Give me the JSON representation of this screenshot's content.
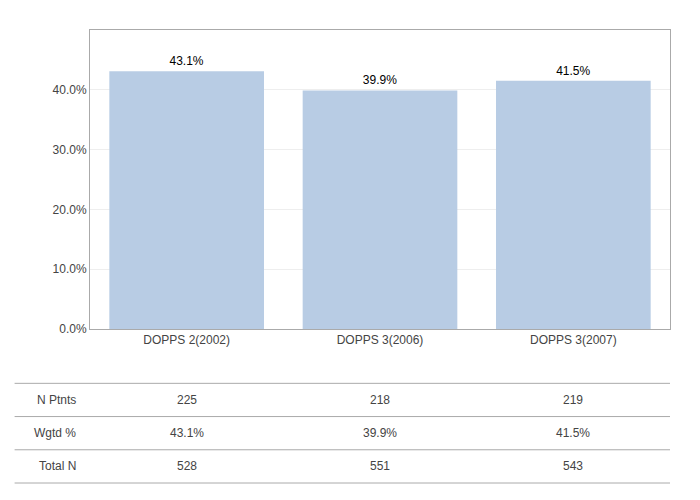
{
  "chart_data": {
    "type": "bar",
    "categories": [
      "DOPPS 2(2002)",
      "DOPPS 3(2006)",
      "DOPPS 3(2007)"
    ],
    "values": [
      43.1,
      39.9,
      41.5
    ],
    "value_labels": [
      "43.1%",
      "39.9%",
      "41.5%"
    ],
    "data_labels": true,
    "color": "#b8cce4",
    "ylim": [
      0,
      50
    ],
    "yticks": [
      {
        "value": 0,
        "label": "0.0%"
      },
      {
        "value": 10,
        "label": "10.0%"
      },
      {
        "value": 20,
        "label": "20.0%"
      },
      {
        "value": 30,
        "label": "30.0%"
      },
      {
        "value": 40,
        "label": "40.0%"
      }
    ],
    "grid": true,
    "table": {
      "row_labels": [
        "N Ptnts",
        "Wgtd %",
        "Total N"
      ],
      "rows": [
        [
          "225",
          "218",
          "219"
        ],
        [
          "43.1%",
          "39.9%",
          "41.5%"
        ],
        [
          "528",
          "551",
          "543"
        ]
      ]
    }
  }
}
